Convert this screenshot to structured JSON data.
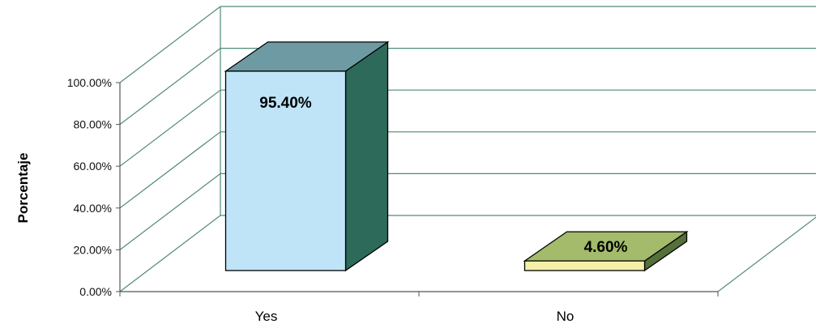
{
  "chart_data": {
    "type": "bar",
    "categories": [
      "Yes",
      "No"
    ],
    "values": [
      95.4,
      4.6
    ],
    "data_labels": [
      "95.40%",
      "4.60%"
    ],
    "ylabel": "Porcentaje",
    "xlabel": "",
    "ylim": [
      0,
      100
    ],
    "yticks": [
      "0.00%",
      "20.00%",
      "40.00%",
      "60.00%",
      "80.00%",
      "100.00%"
    ],
    "grid": true,
    "legend": "none",
    "style": "3d",
    "colors": {
      "yes_front": "#bfe4f8",
      "yes_top": "#6e9aa4",
      "yes_side": "#2d6a59",
      "no_front": "#f4f0a8",
      "no_top": "#a3bb6a",
      "no_side": "#55703a",
      "gridline": "#4f8a77",
      "axis": "#555555"
    }
  }
}
